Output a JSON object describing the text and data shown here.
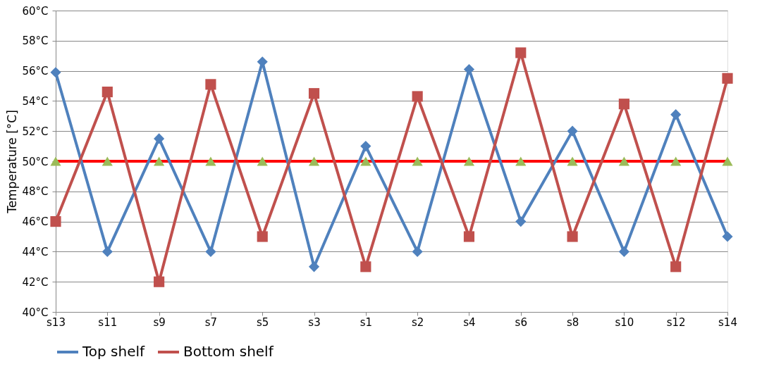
{
  "chart_data": {
    "type": "line",
    "ylabel": "Temperature [°C]",
    "categories": [
      "s13",
      "s11",
      "s9",
      "s7",
      "s5",
      "s3",
      "s1",
      "s2",
      "s4",
      "s6",
      "s8",
      "s10",
      "s12",
      "s14"
    ],
    "series": [
      {
        "name": "Top shelf",
        "color": "#4f81bd",
        "marker": "diamond",
        "values": [
          55.9,
          44,
          51.5,
          44,
          56.6,
          43,
          51.0,
          44,
          56.1,
          46,
          52.0,
          44,
          53.1,
          45
        ]
      },
      {
        "name": "Bottom shelf",
        "color": "#c0504d",
        "marker": "square",
        "values": [
          46,
          54.6,
          42,
          55.1,
          45,
          54.5,
          43,
          54.3,
          45,
          57.2,
          45,
          53.8,
          43,
          55.5
        ]
      },
      {
        "type": "scatter",
        "color": "#9bbb59",
        "marker": "triangle",
        "values": [
          50,
          50,
          50,
          50,
          50,
          50,
          50,
          50,
          50,
          50,
          50,
          50,
          50,
          50
        ]
      }
    ],
    "ref_lines": [
      {
        "axis": "y",
        "value": 50,
        "color": "#ff0000"
      }
    ],
    "ylim": [
      40,
      60
    ],
    "yticks": [
      {
        "value": 40,
        "label": "40°C"
      },
      {
        "value": 42,
        "label": "42°C"
      },
      {
        "value": 44,
        "label": "44°C"
      },
      {
        "value": 46,
        "label": "46°C"
      },
      {
        "value": 48,
        "label": "48°C"
      },
      {
        "value": 50,
        "label": "50°C"
      },
      {
        "value": 52,
        "label": "52°C"
      },
      {
        "value": 54,
        "label": "54°C"
      },
      {
        "value": 56,
        "label": "56°C"
      },
      {
        "value": 58,
        "label": "58°C"
      },
      {
        "value": 60,
        "label": "60°C"
      }
    ],
    "grid": "y",
    "legend": "bottom"
  }
}
